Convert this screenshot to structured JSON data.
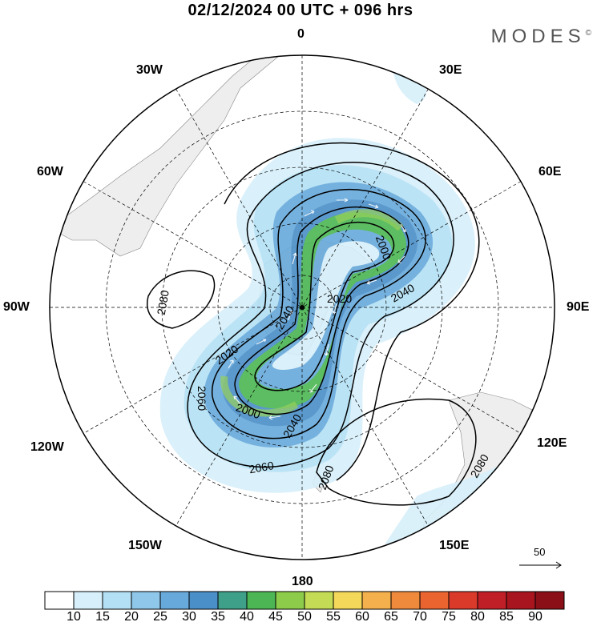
{
  "title": "02/12/2024  00 UTC  + 096 hrs",
  "brand": "MODES",
  "brand_mark": "©",
  "longitude_labels": {
    "top": "0",
    "bottom": "180",
    "left": "90W",
    "right": "90E",
    "w30": "30W",
    "w60": "60W",
    "w120": "120W",
    "w150": "150W",
    "e30": "30E",
    "e60": "60E",
    "e120": "120E",
    "e150": "150E"
  },
  "contour_labels": [
    "2080",
    "2040",
    "2020",
    "2000",
    "2060",
    "2040",
    "2020",
    "2000",
    "2060",
    "2040",
    "2080",
    "2080"
  ],
  "reference_vector": "50",
  "colorbar": {
    "labels": [
      "10",
      "15",
      "20",
      "25",
      "30",
      "35",
      "40",
      "45",
      "50",
      "55",
      "60",
      "65",
      "70",
      "75",
      "80",
      "85",
      "90"
    ],
    "colors": [
      "#ffffff",
      "#d6effa",
      "#b3e0f5",
      "#8ec7ea",
      "#67a9db",
      "#4a8fc8",
      "#3fa08a",
      "#4bb653",
      "#8ccc4a",
      "#c4dc55",
      "#f4d85a",
      "#f3b04c",
      "#ef8a3c",
      "#e9642f",
      "#d93a2a",
      "#c11f27",
      "#a8151e",
      "#8a0f17"
    ]
  }
}
